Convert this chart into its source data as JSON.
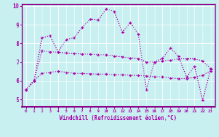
{
  "xlabel": "Windchill (Refroidissement éolien,°C)",
  "bg_color": "#c8f0f0",
  "line_color": "#aa00aa",
  "spine_color": "#880088",
  "xlim": [
    -0.5,
    23.5
  ],
  "ylim": [
    4.6,
    10.1
  ],
  "yticks": [
    5,
    6,
    7,
    8,
    9,
    10
  ],
  "xticks": [
    0,
    1,
    2,
    3,
    4,
    5,
    6,
    7,
    8,
    9,
    10,
    11,
    12,
    13,
    14,
    15,
    16,
    17,
    18,
    19,
    20,
    21,
    22,
    23
  ],
  "line1_y": [
    5.5,
    6.0,
    6.4,
    6.45,
    6.5,
    6.45,
    6.4,
    6.38,
    6.37,
    6.35,
    6.35,
    6.33,
    6.32,
    6.3,
    6.28,
    6.25,
    6.22,
    6.2,
    6.15,
    6.12,
    6.12,
    6.18,
    6.3,
    6.52
  ],
  "line2_y": [
    5.5,
    6.0,
    7.6,
    7.55,
    7.52,
    7.48,
    7.45,
    7.43,
    7.42,
    7.4,
    7.38,
    7.33,
    7.28,
    7.22,
    7.18,
    7.0,
    7.0,
    7.05,
    7.1,
    7.18,
    7.18,
    7.18,
    7.05,
    6.65
  ],
  "line3_y": [
    5.5,
    6.0,
    8.3,
    8.4,
    7.55,
    8.2,
    8.3,
    8.85,
    9.3,
    9.25,
    9.85,
    9.7,
    8.6,
    9.1,
    8.5,
    5.52,
    7.0,
    7.2,
    7.75,
    7.3,
    6.2,
    6.78,
    4.95,
    6.6
  ]
}
